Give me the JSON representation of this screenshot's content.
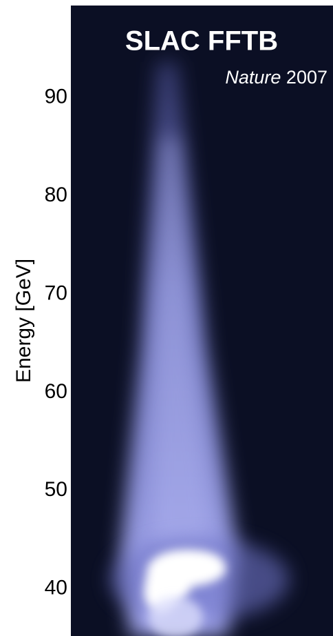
{
  "chart_data": {
    "type": "image",
    "title": "SLAC FFTB",
    "subtitle_italic": "Nature",
    "subtitle": "2007",
    "ylabel": "Energy [GeV]",
    "ylim": [
      35.2,
      99.4
    ],
    "yticks": [
      40,
      50,
      60,
      70,
      80,
      90
    ]
  }
}
